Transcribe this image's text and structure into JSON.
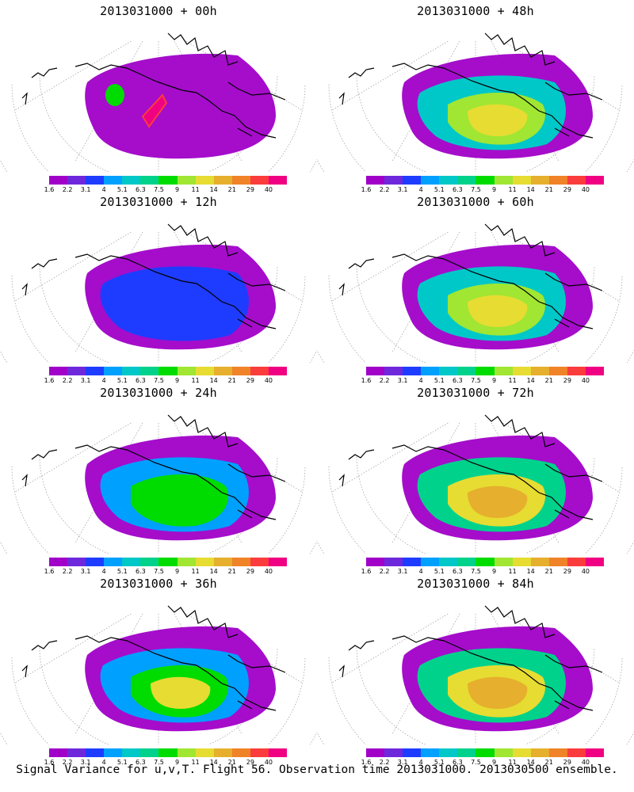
{
  "panels": [
    {
      "title": "2013031000 + 00h",
      "lead_hours": 0
    },
    {
      "title": "2013031000 + 48h",
      "lead_hours": 48
    },
    {
      "title": "2013031000 + 12h",
      "lead_hours": 12
    },
    {
      "title": "2013031000 + 60h",
      "lead_hours": 60
    },
    {
      "title": "2013031000 + 24h",
      "lead_hours": 24
    },
    {
      "title": "2013031000 + 72h",
      "lead_hours": 72
    },
    {
      "title": "2013031000 + 36h",
      "lead_hours": 36
    },
    {
      "title": "2013031000 + 84h",
      "lead_hours": 84
    }
  ],
  "colorbar": {
    "labels": [
      "1.6",
      "2.2",
      "3.1",
      "4",
      "5.1",
      "6.3",
      "7.5",
      "9",
      "11",
      "14",
      "21",
      "29",
      "40"
    ],
    "colors": [
      "#a000c8",
      "#6e28dc",
      "#1e3cff",
      "#00a0ff",
      "#00c8c8",
      "#00d28c",
      "#00dc00",
      "#a0e632",
      "#e6dc32",
      "#e6af2d",
      "#f08228",
      "#fa3c3c",
      "#f00082"
    ]
  },
  "caption": "Signal Variance for u,v,T. Flight 56. Observation time 2013031000. 2013030500 ensemble."
}
